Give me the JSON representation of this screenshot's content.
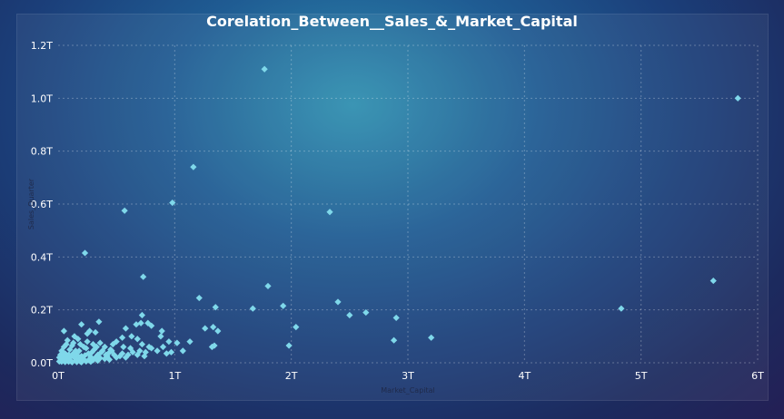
{
  "chart_data": {
    "type": "scatter",
    "title": "Corelation_Between__Sales_&_Market_Capital",
    "xlabel": "Market_Capital",
    "ylabel": "Sales_Quarter",
    "xlim": [
      0,
      6
    ],
    "ylim": [
      0,
      1.2
    ],
    "x_ticks": [
      {
        "value": 0,
        "label": "0T"
      },
      {
        "value": 1,
        "label": "1T"
      },
      {
        "value": 2,
        "label": "2T"
      },
      {
        "value": 3,
        "label": "3T"
      },
      {
        "value": 4,
        "label": "4T"
      },
      {
        "value": 5,
        "label": "5T"
      },
      {
        "value": 6,
        "label": "6T"
      }
    ],
    "y_ticks": [
      {
        "value": 0,
        "label": "0.0T"
      },
      {
        "value": 0.2,
        "label": "0.2T"
      },
      {
        "value": 0.4,
        "label": "0.4T"
      },
      {
        "value": 0.6,
        "label": "0.6T"
      },
      {
        "value": 0.8,
        "label": "0.8T"
      },
      {
        "value": 1.0,
        "label": "1.0T"
      },
      {
        "value": 1.2,
        "label": "1.2T"
      }
    ],
    "grid": true,
    "marker_color": "#7fd8ea",
    "points": [
      [
        1.77,
        1.11
      ],
      [
        5.83,
        1.0
      ],
      [
        1.16,
        0.74
      ],
      [
        0.98,
        0.605
      ],
      [
        0.57,
        0.575
      ],
      [
        2.33,
        0.57
      ],
      [
        0.23,
        0.415
      ],
      [
        0.73,
        0.325
      ],
      [
        1.8,
        0.29
      ],
      [
        1.21,
        0.245
      ],
      [
        2.4,
        0.23
      ],
      [
        1.93,
        0.215
      ],
      [
        5.62,
        0.31
      ],
      [
        4.83,
        0.205
      ],
      [
        1.67,
        0.205
      ],
      [
        1.35,
        0.21
      ],
      [
        2.5,
        0.18
      ],
      [
        2.64,
        0.19
      ],
      [
        2.9,
        0.17
      ],
      [
        2.04,
        0.135
      ],
      [
        1.33,
        0.135
      ],
      [
        1.26,
        0.13
      ],
      [
        1.37,
        0.12
      ],
      [
        2.88,
        0.085
      ],
      [
        3.2,
        0.095
      ],
      [
        1.98,
        0.065
      ],
      [
        1.34,
        0.065
      ],
      [
        1.32,
        0.06
      ],
      [
        1.13,
        0.08
      ],
      [
        1.02,
        0.075
      ],
      [
        1.07,
        0.045
      ],
      [
        0.97,
        0.04
      ],
      [
        0.93,
        0.035
      ],
      [
        0.72,
        0.18
      ],
      [
        0.71,
        0.15
      ],
      [
        0.77,
        0.15
      ],
      [
        0.67,
        0.145
      ],
      [
        0.8,
        0.14
      ],
      [
        0.58,
        0.13
      ],
      [
        0.89,
        0.12
      ],
      [
        0.88,
        0.1
      ],
      [
        0.63,
        0.1
      ],
      [
        0.68,
        0.09
      ],
      [
        0.72,
        0.07
      ],
      [
        0.8,
        0.055
      ],
      [
        0.75,
        0.04
      ],
      [
        0.68,
        0.03
      ],
      [
        0.62,
        0.055
      ],
      [
        0.56,
        0.06
      ],
      [
        0.55,
        0.095
      ],
      [
        0.55,
        0.035
      ],
      [
        0.5,
        0.08
      ],
      [
        0.47,
        0.07
      ],
      [
        0.45,
        0.05
      ],
      [
        0.43,
        0.035
      ],
      [
        0.35,
        0.155
      ],
      [
        0.32,
        0.115
      ],
      [
        0.27,
        0.12
      ],
      [
        0.2,
        0.145
      ],
      [
        0.14,
        0.1
      ],
      [
        0.05,
        0.12
      ],
      [
        0.08,
        0.085
      ],
      [
        0.17,
        0.09
      ],
      [
        0.25,
        0.08
      ],
      [
        0.3,
        0.07
      ],
      [
        0.36,
        0.075
      ],
      [
        0.4,
        0.06
      ],
      [
        0.38,
        0.045
      ],
      [
        0.31,
        0.05
      ],
      [
        0.22,
        0.06
      ],
      [
        0.12,
        0.065
      ],
      [
        0.05,
        0.06
      ],
      [
        0.03,
        0.045
      ],
      [
        0.1,
        0.05
      ],
      [
        0.18,
        0.045
      ],
      [
        0.26,
        0.035
      ],
      [
        0.34,
        0.03
      ],
      [
        0.42,
        0.025
      ],
      [
        0.5,
        0.02
      ],
      [
        0.58,
        0.02
      ],
      [
        0.48,
        0.03
      ],
      [
        0.02,
        0.03
      ],
      [
        0.06,
        0.035
      ],
      [
        0.09,
        0.03
      ],
      [
        0.13,
        0.035
      ],
      [
        0.16,
        0.03
      ],
      [
        0.2,
        0.025
      ],
      [
        0.23,
        0.028
      ],
      [
        0.28,
        0.022
      ],
      [
        0.32,
        0.02
      ],
      [
        0.36,
        0.018
      ],
      [
        0.4,
        0.015
      ],
      [
        0.44,
        0.012
      ],
      [
        0.01,
        0.02
      ],
      [
        0.04,
        0.022
      ],
      [
        0.07,
        0.02
      ],
      [
        0.1,
        0.018
      ],
      [
        0.14,
        0.02
      ],
      [
        0.18,
        0.015
      ],
      [
        0.22,
        0.012
      ],
      [
        0.26,
        0.01
      ],
      [
        0.3,
        0.01
      ],
      [
        0.34,
        0.008
      ],
      [
        0.02,
        0.01
      ],
      [
        0.05,
        0.008
      ],
      [
        0.08,
        0.01
      ],
      [
        0.11,
        0.006
      ],
      [
        0.15,
        0.008
      ],
      [
        0.19,
        0.005
      ],
      [
        0.24,
        0.005
      ],
      [
        0.28,
        0.004
      ],
      [
        0.03,
        0.004
      ],
      [
        0.06,
        0.003
      ],
      [
        0.09,
        0.004
      ],
      [
        0.12,
        0.002
      ],
      [
        0.16,
        0.003
      ],
      [
        0.2,
        0.002
      ],
      [
        0.01,
        0.005
      ],
      [
        0.04,
        0.012
      ],
      [
        0.07,
        0.015
      ],
      [
        0.11,
        0.025
      ],
      [
        0.15,
        0.045
      ],
      [
        0.19,
        0.07
      ],
      [
        0.24,
        0.055
      ],
      [
        0.29,
        0.04
      ],
      [
        0.33,
        0.06
      ],
      [
        0.37,
        0.04
      ],
      [
        0.41,
        0.03
      ],
      [
        0.46,
        0.045
      ],
      [
        0.53,
        0.025
      ],
      [
        0.6,
        0.03
      ],
      [
        0.64,
        0.04
      ],
      [
        0.7,
        0.045
      ],
      [
        0.74,
        0.025
      ],
      [
        0.78,
        0.06
      ],
      [
        0.85,
        0.045
      ],
      [
        0.9,
        0.06
      ],
      [
        0.95,
        0.08
      ],
      [
        0.25,
        0.11
      ],
      [
        0.13,
        0.075
      ],
      [
        0.07,
        0.07
      ]
    ]
  }
}
